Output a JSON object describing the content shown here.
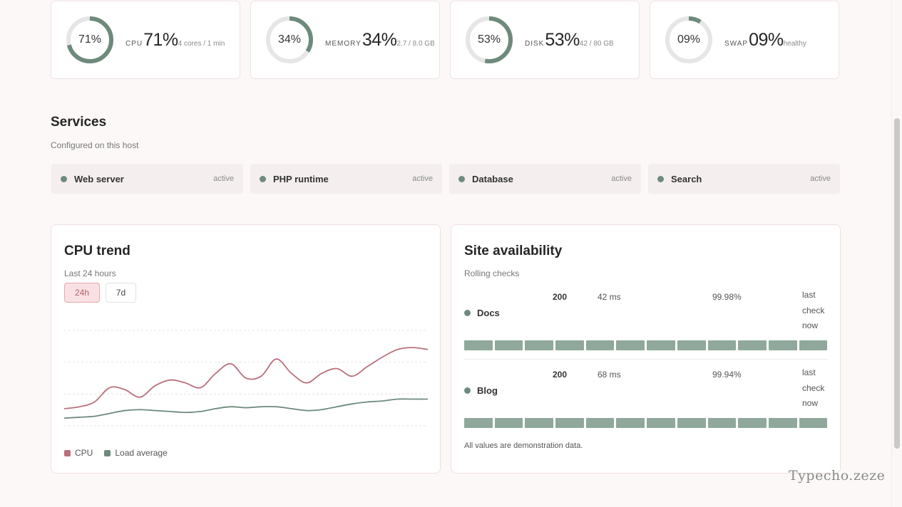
{
  "colors": {
    "accent_green": "#6e8a7c",
    "ring_track": "#e6e6e6",
    "cpu_series": "#b9707c",
    "load_series": "#6e8a7c",
    "status_bar": "#8fa89b"
  },
  "metrics": [
    {
      "ring_text": "71%",
      "label": "CPU",
      "value": "71%",
      "sub": "4 cores / 1 min",
      "percent": 71
    },
    {
      "ring_text": "34%",
      "label": "MEMORY",
      "value": "34%",
      "sub": "2.7 / 8.0 GB",
      "percent": 34
    },
    {
      "ring_text": "53%",
      "label": "DISK",
      "value": "53%",
      "sub": "42 / 80 GB",
      "percent": 53
    },
    {
      "ring_text": "09%",
      "label": "SWAP",
      "value": "09%",
      "sub": "healthy",
      "percent": 9
    }
  ],
  "services": {
    "title": "Services",
    "subtitle": "Configured on this host",
    "items": [
      {
        "name": "Web server",
        "state": "active"
      },
      {
        "name": "PHP runtime",
        "state": "active"
      },
      {
        "name": "Database",
        "state": "active"
      },
      {
        "name": "Search",
        "state": "active"
      }
    ]
  },
  "cpu_trend": {
    "title": "CPU trend",
    "subtitle": "Last 24 hours",
    "ranges": [
      "24h",
      "7d"
    ],
    "selected_range": "24h",
    "legend": [
      "CPU",
      "Load average"
    ]
  },
  "chart_data": {
    "type": "line",
    "title": "CPU trend",
    "subtitle": "Last 24 hours",
    "x": [
      0,
      1,
      2,
      3,
      4,
      5,
      6,
      7,
      8,
      9,
      10,
      11,
      12,
      13,
      14,
      15,
      16,
      17,
      18,
      19,
      20,
      21,
      22,
      23,
      24
    ],
    "ylim": [
      0,
      100
    ],
    "grid": true,
    "legend_position": "bottom-left",
    "series": [
      {
        "name": "CPU",
        "values": [
          18,
          20,
          25,
          40,
          38,
          30,
          42,
          48,
          45,
          40,
          55,
          65,
          50,
          52,
          70,
          55,
          45,
          55,
          60,
          52,
          62,
          72,
          80,
          82,
          80
        ]
      },
      {
        "name": "Load average",
        "values": [
          8,
          9,
          10,
          13,
          16,
          17,
          16,
          15,
          14,
          15,
          18,
          20,
          19,
          20,
          20,
          18,
          16,
          17,
          20,
          23,
          25,
          26,
          28,
          28,
          28
        ]
      }
    ]
  },
  "availability": {
    "title": "Site availability",
    "subtitle": "Rolling checks",
    "sites": [
      {
        "name": "Docs",
        "code": "200",
        "latency": "42 ms",
        "uptime": "99.98%",
        "check": "last check now",
        "bars": 12
      },
      {
        "name": "Blog",
        "code": "200",
        "latency": "68 ms",
        "uptime": "99.94%",
        "check": "last check now",
        "bars": 12
      }
    ],
    "note": "All values are demonstration data."
  },
  "watermark": "Typecho.zeze"
}
